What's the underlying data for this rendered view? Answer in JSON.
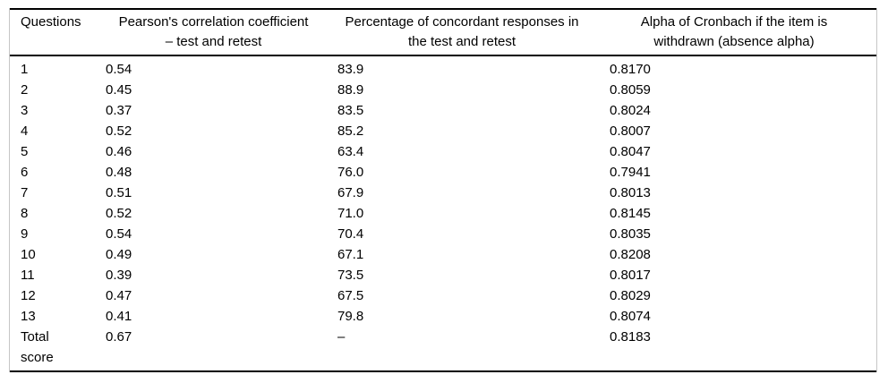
{
  "table": {
    "columns": [
      {
        "line1": "Questions",
        "line2": ""
      },
      {
        "line1": "Pearson's correlation coefficient",
        "line2": "– test and retest"
      },
      {
        "line1": "Percentage of concordant responses in",
        "line2": "the test and retest"
      },
      {
        "line1": "Alpha of Cronbach if the item is",
        "line2": "withdrawn (absence alpha)"
      }
    ],
    "rows": [
      {
        "question": "1",
        "pearson": "0.54",
        "concordant": "83.9",
        "alpha": "0.8170"
      },
      {
        "question": "2",
        "pearson": "0.45",
        "concordant": "88.9",
        "alpha": "0.8059"
      },
      {
        "question": "3",
        "pearson": "0.37",
        "concordant": "83.5",
        "alpha": "0.8024"
      },
      {
        "question": "4",
        "pearson": "0.52",
        "concordant": "85.2",
        "alpha": "0.8007"
      },
      {
        "question": "5",
        "pearson": "0.46",
        "concordant": "63.4",
        "alpha": "0.8047"
      },
      {
        "question": "6",
        "pearson": "0.48",
        "concordant": "76.0",
        "alpha": "0.7941"
      },
      {
        "question": "7",
        "pearson": "0.51",
        "concordant": "67.9",
        "alpha": "0.8013"
      },
      {
        "question": "8",
        "pearson": "0.52",
        "concordant": "71.0",
        "alpha": "0.8145"
      },
      {
        "question": "9",
        "pearson": "0.54",
        "concordant": "70.4",
        "alpha": "0.8035"
      },
      {
        "question": "10",
        "pearson": "0.49",
        "concordant": "67.1",
        "alpha": "0.8208"
      },
      {
        "question": "11",
        "pearson": "0.39",
        "concordant": "73.5",
        "alpha": "0.8017"
      },
      {
        "question": "12",
        "pearson": "0.47",
        "concordant": "67.5",
        "alpha": "0.8029"
      },
      {
        "question": "13",
        "pearson": "0.41",
        "concordant": "79.8",
        "alpha": "0.8074"
      },
      {
        "question": "Total score",
        "pearson": "0.67",
        "concordant": "–",
        "alpha": "0.8183"
      }
    ],
    "colors": {
      "rule": "#000000",
      "side_edge": "#c6c6c6",
      "text": "#000000",
      "background": "#ffffff"
    }
  }
}
